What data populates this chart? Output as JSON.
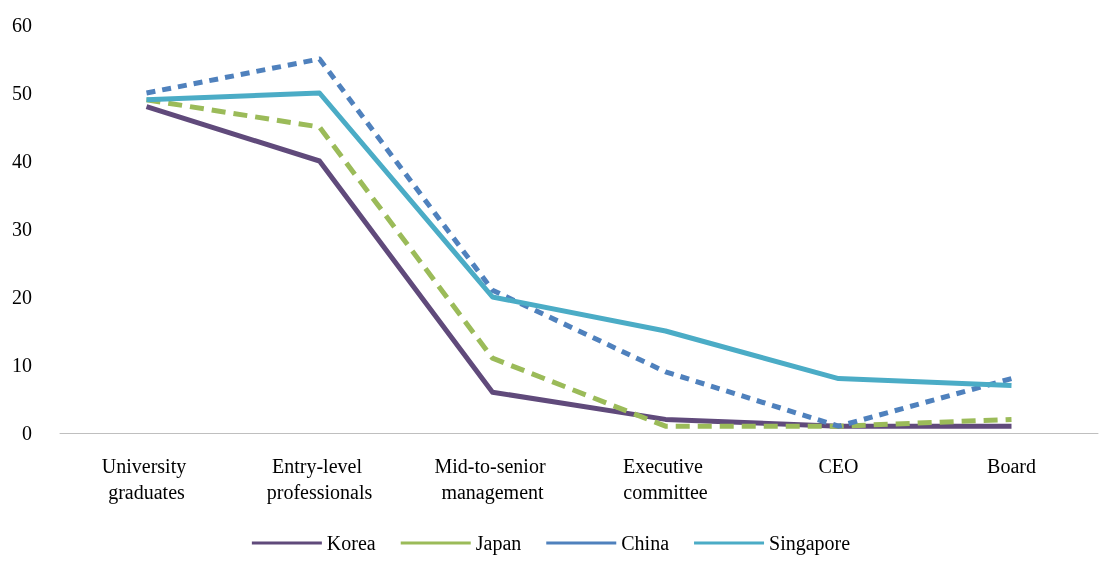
{
  "chart_data": {
    "type": "line",
    "categories": [
      "University graduates",
      "Entry-level professionals",
      "Mid-to-senior management",
      "Executive committee",
      "CEO",
      "Board"
    ],
    "series": [
      {
        "name": "Korea",
        "color": "#604a7b",
        "line_style": "solid",
        "values": [
          48,
          40,
          6,
          2,
          1,
          1
        ]
      },
      {
        "name": "Japan",
        "color": "#9bbb59",
        "line_style": "dashed",
        "values": [
          49,
          45,
          11,
          1,
          1,
          2
        ]
      },
      {
        "name": "China",
        "color": "#4f81bd",
        "line_style": "dashed",
        "values": [
          50,
          55,
          21,
          9,
          1,
          8
        ]
      },
      {
        "name": "Singapore",
        "color": "#4bacc6",
        "line_style": "solid",
        "values": [
          49,
          50,
          20,
          15,
          8,
          7
        ]
      }
    ],
    "ylim": [
      0,
      60
    ],
    "yticks": [
      0,
      10,
      20,
      30,
      40,
      50,
      60
    ],
    "grid": false,
    "legend": "bottom",
    "marker": "none"
  }
}
